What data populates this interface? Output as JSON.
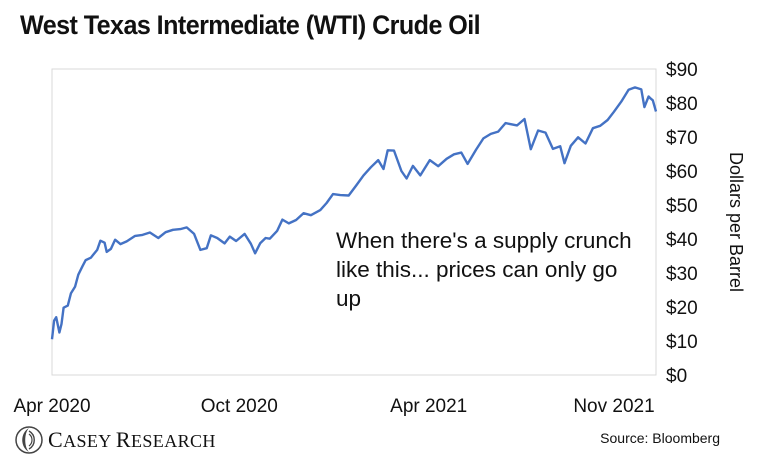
{
  "chart_data": {
    "type": "line",
    "title": "West Texas Intermediate (WTI) Crude Oil",
    "ylabel": "Dollars per Barrel",
    "ylim": [
      0,
      90
    ],
    "y_ticks": [
      "$0",
      "$10",
      "$20",
      "$30",
      "$40",
      "$50",
      "$60",
      "$70",
      "$80",
      "$90"
    ],
    "x_ticks": [
      {
        "label": "Apr 2020",
        "date": "2020-04-20"
      },
      {
        "label": "Oct 2020",
        "date": "2020-10-15"
      },
      {
        "label": "Apr 2021",
        "date": "2021-04-13"
      },
      {
        "label": "Nov 2021",
        "date": "2021-11-10"
      }
    ],
    "xlim": [
      "2020-04-20",
      "2021-11-15"
    ],
    "series": [
      {
        "color": "#4472C4",
        "points": [
          [
            "2020-04-20",
            10.5
          ],
          [
            "2020-04-22",
            16
          ],
          [
            "2020-04-24",
            17
          ],
          [
            "2020-04-27",
            12.5
          ],
          [
            "2020-04-29",
            15
          ],
          [
            "2020-05-01",
            19.8
          ],
          [
            "2020-05-05",
            20.4
          ],
          [
            "2020-05-08",
            24
          ],
          [
            "2020-05-12",
            26
          ],
          [
            "2020-05-15",
            29.5
          ],
          [
            "2020-05-19",
            32
          ],
          [
            "2020-05-22",
            33.8
          ],
          [
            "2020-05-27",
            34.5
          ],
          [
            "2020-05-29",
            35.3
          ],
          [
            "2020-06-02",
            36.8
          ],
          [
            "2020-06-05",
            39.5
          ],
          [
            "2020-06-09",
            38.9
          ],
          [
            "2020-06-11",
            36.2
          ],
          [
            "2020-06-15",
            37.1
          ],
          [
            "2020-06-19",
            39.8
          ],
          [
            "2020-06-24",
            38.5
          ],
          [
            "2020-06-30",
            39.3
          ],
          [
            "2020-07-08",
            40.9
          ],
          [
            "2020-07-15",
            41.2
          ],
          [
            "2020-07-22",
            41.9
          ],
          [
            "2020-07-30",
            40.3
          ],
          [
            "2020-08-06",
            42.0
          ],
          [
            "2020-08-13",
            42.7
          ],
          [
            "2020-08-20",
            42.9
          ],
          [
            "2020-08-26",
            43.4
          ],
          [
            "2020-09-02",
            41.5
          ],
          [
            "2020-09-08",
            36.8
          ],
          [
            "2020-09-14",
            37.3
          ],
          [
            "2020-09-18",
            41.1
          ],
          [
            "2020-09-24",
            40.3
          ],
          [
            "2020-10-01",
            38.7
          ],
          [
            "2020-10-06",
            40.7
          ],
          [
            "2020-10-12",
            39.4
          ],
          [
            "2020-10-20",
            41.5
          ],
          [
            "2020-10-26",
            38.6
          ],
          [
            "2020-10-30",
            35.8
          ],
          [
            "2020-11-04",
            38.8
          ],
          [
            "2020-11-09",
            40.3
          ],
          [
            "2020-11-13",
            40.1
          ],
          [
            "2020-11-20",
            42.4
          ],
          [
            "2020-11-25",
            45.7
          ],
          [
            "2020-12-01",
            44.6
          ],
          [
            "2020-12-08",
            45.6
          ],
          [
            "2020-12-15",
            47.6
          ],
          [
            "2020-12-22",
            47.0
          ],
          [
            "2020-12-31",
            48.5
          ],
          [
            "2021-01-06",
            50.6
          ],
          [
            "2021-01-12",
            53.2
          ],
          [
            "2021-01-19",
            52.9
          ],
          [
            "2021-01-27",
            52.8
          ],
          [
            "2021-02-03",
            55.7
          ],
          [
            "2021-02-10",
            58.7
          ],
          [
            "2021-02-17",
            61.1
          ],
          [
            "2021-02-24",
            63.2
          ],
          [
            "2021-03-01",
            60.6
          ],
          [
            "2021-03-05",
            66.1
          ],
          [
            "2021-03-11",
            66.0
          ],
          [
            "2021-03-18",
            60.0
          ],
          [
            "2021-03-23",
            57.8
          ],
          [
            "2021-03-29",
            61.5
          ],
          [
            "2021-04-05",
            58.7
          ],
          [
            "2021-04-14",
            63.2
          ],
          [
            "2021-04-22",
            61.4
          ],
          [
            "2021-04-30",
            63.6
          ],
          [
            "2021-05-07",
            64.9
          ],
          [
            "2021-05-14",
            65.4
          ],
          [
            "2021-05-20",
            62.1
          ],
          [
            "2021-05-28",
            66.3
          ],
          [
            "2021-06-04",
            69.6
          ],
          [
            "2021-06-11",
            70.9
          ],
          [
            "2021-06-18",
            71.6
          ],
          [
            "2021-06-25",
            74.1
          ],
          [
            "2021-07-06",
            73.4
          ],
          [
            "2021-07-13",
            75.3
          ],
          [
            "2021-07-19",
            66.4
          ],
          [
            "2021-07-26",
            71.9
          ],
          [
            "2021-08-02",
            71.3
          ],
          [
            "2021-08-09",
            66.5
          ],
          [
            "2021-08-16",
            67.3
          ],
          [
            "2021-08-20",
            62.3
          ],
          [
            "2021-08-26",
            67.4
          ],
          [
            "2021-09-02",
            69.9
          ],
          [
            "2021-09-09",
            68.1
          ],
          [
            "2021-09-16",
            72.6
          ],
          [
            "2021-09-23",
            73.3
          ],
          [
            "2021-09-30",
            75.0
          ],
          [
            "2021-10-06",
            77.4
          ],
          [
            "2021-10-13",
            80.4
          ],
          [
            "2021-10-20",
            83.9
          ],
          [
            "2021-10-26",
            84.6
          ],
          [
            "2021-11-01",
            84.0
          ],
          [
            "2021-11-04",
            78.8
          ],
          [
            "2021-11-08",
            81.9
          ],
          [
            "2021-11-10",
            81.3
          ],
          [
            "2021-11-12",
            80.8
          ],
          [
            "2021-11-15",
            77.5
          ]
        ]
      }
    ],
    "annotation": "When there's a supply crunch like this... prices can only go up",
    "grid": false,
    "legend": "none"
  },
  "source": "Source: Bloomberg",
  "logo": {
    "text_a": "C",
    "text_b": "ASEY ",
    "text_c": "R",
    "text_d": "ESEARCH",
    "icon": "swirl-logo-icon"
  }
}
